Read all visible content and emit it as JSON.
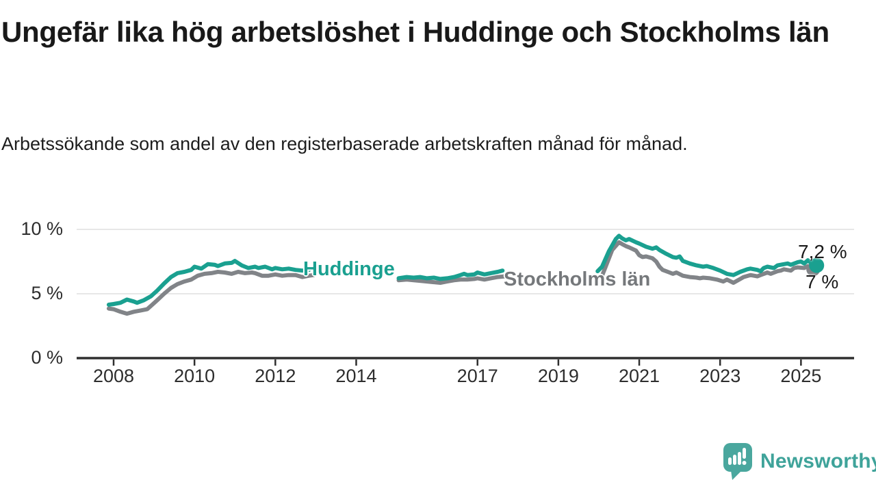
{
  "header": {
    "title": "Ungefär lika hög arbetslöshet i Huddinge och Stockholms län",
    "subtitle": "Arbetssökande som andel av den registerbaserade arbetskraften månad för månad."
  },
  "footer": {
    "brand": "Newsworthy",
    "logo_icon": "newsworthy-speech-bubble-bar-chart-icon"
  },
  "colors": {
    "huddinge_line": "#1aa090",
    "stockholm_line": "#818488",
    "stockholm_label": "#75787b",
    "end_label_text": "#1a1a1a",
    "axis_text": "#2d2d2d",
    "axis_line": "#2f2f2f",
    "gridline": "#e7e7e7",
    "brand_teal": "#3fa39a",
    "background": "#ffffff"
  },
  "chart_data": {
    "type": "line",
    "unit": "%",
    "title": "Ungefär lika hög arbetslöshet i Huddinge och Stockholms län",
    "subtitle": "Arbetssökande som andel av den registerbaserade arbetskraften månad för månad.",
    "grid": "horizontal-only",
    "legend_position": "inline-on-line",
    "x_axis": {
      "ticks": [
        {
          "year": 2008,
          "label": "2008"
        },
        {
          "year": 2010,
          "label": "2010"
        },
        {
          "year": 2012,
          "label": "2012"
        },
        {
          "year": 2014,
          "label": "2014"
        },
        {
          "year": 2017,
          "label": "2017"
        },
        {
          "year": 2019,
          "label": "2019"
        },
        {
          "year": 2021,
          "label": "2021"
        },
        {
          "year": 2023,
          "label": "2023"
        },
        {
          "year": 2025,
          "label": "2025"
        }
      ],
      "range": [
        2007.5,
        2026.3
      ]
    },
    "y_axis": {
      "ticks": [
        {
          "value": 0,
          "label": "0 %"
        },
        {
          "value": 5,
          "label": "5 %"
        },
        {
          "value": 10,
          "label": "10 %"
        }
      ],
      "grid_values": [
        5,
        10
      ],
      "range": [
        0,
        10.5
      ]
    },
    "series": [
      {
        "name": "Huddinge",
        "color": "#1aa090",
        "end_value": 7.2,
        "end_label": "7,2 %",
        "segments": [
          [
            [
              2007.88,
              4.15
            ],
            [
              2008.0,
              4.2
            ],
            [
              2008.17,
              4.3
            ],
            [
              2008.33,
              4.55
            ],
            [
              2008.5,
              4.4
            ],
            [
              2008.58,
              4.3
            ],
            [
              2008.75,
              4.5
            ],
            [
              2008.92,
              4.8
            ],
            [
              2009.08,
              5.25
            ],
            [
              2009.25,
              5.8
            ],
            [
              2009.42,
              6.3
            ],
            [
              2009.58,
              6.6
            ],
            [
              2009.75,
              6.7
            ],
            [
              2009.92,
              6.85
            ],
            [
              2010.0,
              7.1
            ],
            [
              2010.17,
              6.95
            ],
            [
              2010.33,
              7.3
            ],
            [
              2010.5,
              7.25
            ],
            [
              2010.58,
              7.15
            ],
            [
              2010.75,
              7.35
            ],
            [
              2010.92,
              7.4
            ],
            [
              2011.0,
              7.55
            ],
            [
              2011.17,
              7.2
            ],
            [
              2011.33,
              7.0
            ],
            [
              2011.5,
              7.1
            ],
            [
              2011.58,
              7.0
            ],
            [
              2011.75,
              7.1
            ],
            [
              2011.92,
              6.9
            ],
            [
              2012.0,
              7.0
            ],
            [
              2012.17,
              6.9
            ],
            [
              2012.33,
              6.95
            ],
            [
              2012.5,
              6.85
            ],
            [
              2012.67,
              6.8
            ],
            [
              2012.83,
              6.85
            ]
          ],
          [
            [
              2015.05,
              6.2
            ],
            [
              2015.25,
              6.3
            ],
            [
              2015.42,
              6.25
            ],
            [
              2015.58,
              6.3
            ],
            [
              2015.75,
              6.2
            ],
            [
              2015.92,
              6.25
            ],
            [
              2016.08,
              6.15
            ],
            [
              2016.25,
              6.2
            ],
            [
              2016.42,
              6.3
            ],
            [
              2016.58,
              6.45
            ],
            [
              2016.67,
              6.55
            ],
            [
              2016.75,
              6.45
            ],
            [
              2016.92,
              6.5
            ],
            [
              2017.0,
              6.65
            ],
            [
              2017.17,
              6.5
            ],
            [
              2017.33,
              6.6
            ],
            [
              2017.5,
              6.7
            ],
            [
              2017.62,
              6.8
            ]
          ],
          [
            [
              2019.97,
              6.75
            ],
            [
              2020.08,
              7.1
            ],
            [
              2020.25,
              8.3
            ],
            [
              2020.42,
              9.25
            ],
            [
              2020.5,
              9.5
            ],
            [
              2020.58,
              9.3
            ],
            [
              2020.67,
              9.15
            ],
            [
              2020.75,
              9.25
            ],
            [
              2020.92,
              9.0
            ],
            [
              2021.0,
              8.9
            ],
            [
              2021.17,
              8.65
            ],
            [
              2021.33,
              8.5
            ],
            [
              2021.42,
              8.6
            ],
            [
              2021.5,
              8.4
            ],
            [
              2021.67,
              8.1
            ],
            [
              2021.83,
              7.85
            ],
            [
              2021.92,
              7.8
            ],
            [
              2022.0,
              7.9
            ],
            [
              2022.08,
              7.55
            ],
            [
              2022.25,
              7.35
            ],
            [
              2022.42,
              7.2
            ],
            [
              2022.58,
              7.1
            ],
            [
              2022.67,
              7.15
            ],
            [
              2022.83,
              7.0
            ],
            [
              2023.0,
              6.8
            ],
            [
              2023.17,
              6.55
            ],
            [
              2023.33,
              6.45
            ],
            [
              2023.5,
              6.7
            ],
            [
              2023.67,
              6.9
            ],
            [
              2023.75,
              6.95
            ],
            [
              2023.92,
              6.85
            ],
            [
              2024.0,
              6.75
            ],
            [
              2024.08,
              7.0
            ],
            [
              2024.17,
              7.1
            ],
            [
              2024.33,
              7.0
            ],
            [
              2024.42,
              7.2
            ],
            [
              2024.58,
              7.3
            ],
            [
              2024.67,
              7.35
            ],
            [
              2024.75,
              7.25
            ],
            [
              2024.92,
              7.45
            ],
            [
              2025.0,
              7.5
            ],
            [
              2025.08,
              7.35
            ],
            [
              2025.17,
              7.6
            ],
            [
              2025.25,
              7.4
            ],
            [
              2025.37,
              7.2
            ]
          ]
        ]
      },
      {
        "name": "Stockholms län",
        "color": "#818488",
        "end_value": 7.0,
        "end_label": "7 %",
        "segments": [
          [
            [
              2007.88,
              3.85
            ],
            [
              2008.0,
              3.8
            ],
            [
              2008.17,
              3.6
            ],
            [
              2008.33,
              3.45
            ],
            [
              2008.5,
              3.6
            ],
            [
              2008.67,
              3.7
            ],
            [
              2008.83,
              3.8
            ],
            [
              2008.92,
              4.05
            ],
            [
              2009.08,
              4.5
            ],
            [
              2009.25,
              5.0
            ],
            [
              2009.42,
              5.45
            ],
            [
              2009.58,
              5.75
            ],
            [
              2009.75,
              5.95
            ],
            [
              2009.92,
              6.1
            ],
            [
              2010.08,
              6.4
            ],
            [
              2010.25,
              6.55
            ],
            [
              2010.42,
              6.6
            ],
            [
              2010.58,
              6.7
            ],
            [
              2010.75,
              6.65
            ],
            [
              2010.92,
              6.55
            ],
            [
              2011.08,
              6.7
            ],
            [
              2011.25,
              6.6
            ],
            [
              2011.42,
              6.65
            ],
            [
              2011.5,
              6.6
            ],
            [
              2011.67,
              6.4
            ],
            [
              2011.83,
              6.4
            ],
            [
              2012.0,
              6.5
            ],
            [
              2012.17,
              6.4
            ],
            [
              2012.33,
              6.45
            ],
            [
              2012.5,
              6.45
            ],
            [
              2012.67,
              6.3
            ],
            [
              2012.83,
              6.4
            ],
            [
              2012.95,
              6.45
            ]
          ],
          [
            [
              2015.05,
              6.05
            ],
            [
              2015.25,
              6.1
            ],
            [
              2015.42,
              6.05
            ],
            [
              2015.58,
              6.0
            ],
            [
              2015.75,
              5.95
            ],
            [
              2015.92,
              5.9
            ],
            [
              2016.08,
              5.85
            ],
            [
              2016.25,
              5.95
            ],
            [
              2016.42,
              6.05
            ],
            [
              2016.58,
              6.1
            ],
            [
              2016.75,
              6.1
            ],
            [
              2016.92,
              6.15
            ],
            [
              2017.0,
              6.2
            ],
            [
              2017.17,
              6.1
            ],
            [
              2017.33,
              6.2
            ],
            [
              2017.5,
              6.3
            ],
            [
              2017.67,
              6.35
            ]
          ],
          [
            [
              2020.08,
              6.4
            ],
            [
              2020.17,
              7.1
            ],
            [
              2020.33,
              8.4
            ],
            [
              2020.5,
              9.0
            ],
            [
              2020.58,
              8.85
            ],
            [
              2020.67,
              8.7
            ],
            [
              2020.75,
              8.6
            ],
            [
              2020.92,
              8.35
            ],
            [
              2021.0,
              8.0
            ],
            [
              2021.08,
              7.85
            ],
            [
              2021.17,
              7.9
            ],
            [
              2021.33,
              7.75
            ],
            [
              2021.42,
              7.5
            ],
            [
              2021.5,
              7.1
            ],
            [
              2021.58,
              6.85
            ],
            [
              2021.75,
              6.65
            ],
            [
              2021.83,
              6.55
            ],
            [
              2021.92,
              6.65
            ],
            [
              2022.08,
              6.4
            ],
            [
              2022.25,
              6.3
            ],
            [
              2022.42,
              6.25
            ],
            [
              2022.5,
              6.2
            ],
            [
              2022.58,
              6.25
            ],
            [
              2022.75,
              6.2
            ],
            [
              2022.92,
              6.1
            ],
            [
              2023.08,
              5.95
            ],
            [
              2023.17,
              6.1
            ],
            [
              2023.33,
              5.85
            ],
            [
              2023.5,
              6.15
            ],
            [
              2023.58,
              6.3
            ],
            [
              2023.75,
              6.45
            ],
            [
              2023.92,
              6.35
            ],
            [
              2024.0,
              6.45
            ],
            [
              2024.17,
              6.65
            ],
            [
              2024.25,
              6.55
            ],
            [
              2024.42,
              6.75
            ],
            [
              2024.5,
              6.8
            ],
            [
              2024.58,
              6.9
            ],
            [
              2024.75,
              6.8
            ],
            [
              2024.83,
              7.0
            ],
            [
              2024.92,
              7.05
            ],
            [
              2025.08,
              7.0
            ],
            [
              2025.17,
              7.15
            ],
            [
              2025.25,
              7.05
            ],
            [
              2025.37,
              7.0
            ]
          ]
        ]
      }
    ]
  }
}
